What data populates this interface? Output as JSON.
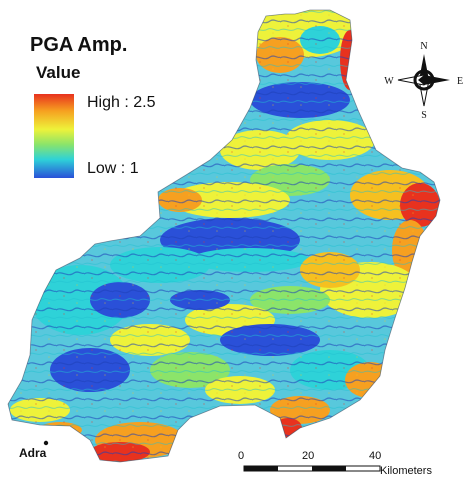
{
  "legend": {
    "title": "PGA Amp.",
    "subtitle": "Value",
    "high_label": "High : 2.5",
    "low_label": "Low : 1",
    "ramp_colors": [
      "#e8321e",
      "#f6a020",
      "#eef23a",
      "#8be46a",
      "#2ed2d8",
      "#2a50d8"
    ]
  },
  "compass": {
    "north": "N",
    "south": "S",
    "east": "E",
    "west": "W",
    "icon": "north-arrow-compass-icon"
  },
  "scale_bar": {
    "labels": [
      "0",
      "20",
      "40"
    ],
    "unit": "Kilometers"
  },
  "place": {
    "name": "Adra"
  },
  "map": {
    "colors": {
      "high": "#e8321e",
      "mid_high": "#f6a020",
      "mid": "#eef23a",
      "mid_low": "#8be46a",
      "low_high": "#2ed2d8",
      "low": "#2a50d8"
    }
  }
}
